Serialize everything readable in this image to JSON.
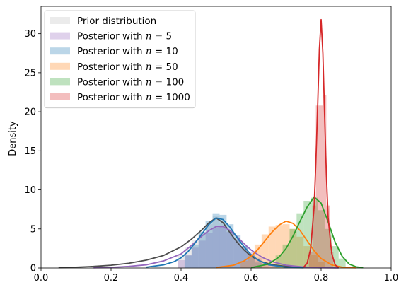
{
  "chart_data": {
    "type": "area",
    "title": "",
    "xlabel": "",
    "ylabel": "Density",
    "xlim": [
      0.0,
      1.0
    ],
    "ylim": [
      0,
      33.5
    ],
    "x_ticks": [
      "0.0",
      "0.2",
      "0.4",
      "0.6",
      "0.8",
      "1.0"
    ],
    "x_tick_values": [
      0.0,
      0.2,
      0.4,
      0.6,
      0.8,
      1.0
    ],
    "y_ticks": [
      "0",
      "5",
      "10",
      "15",
      "20",
      "25",
      "30"
    ],
    "y_tick_values": [
      0,
      5,
      10,
      15,
      20,
      25,
      30
    ],
    "grid": false,
    "legend_position": "top-left",
    "series": [
      {
        "legend_prefix": "Prior distribution",
        "legend_n": "",
        "color": "#bdbdbd",
        "line_color": "#4d4d4d",
        "hist_x": [
          0.4,
          0.42,
          0.44,
          0.46,
          0.48,
          0.5,
          0.52,
          0.54,
          0.56,
          0.58,
          0.6,
          0.62,
          0.64
        ],
        "hist_y": [
          1.6,
          2.6,
          3.6,
          4.6,
          5.6,
          6.6,
          5.8,
          4.8,
          3.6,
          2.6,
          1.6,
          0.9,
          0.4
        ],
        "curve_x": [
          0.05,
          0.1,
          0.15,
          0.2,
          0.25,
          0.3,
          0.35,
          0.4,
          0.43,
          0.46,
          0.48,
          0.5,
          0.52,
          0.54,
          0.56,
          0.58,
          0.6,
          0.63,
          0.66,
          0.7,
          0.75,
          0.8
        ],
        "curve_y": [
          0.05,
          0.1,
          0.2,
          0.35,
          0.6,
          1.0,
          1.6,
          2.7,
          3.7,
          4.9,
          5.8,
          6.4,
          5.8,
          4.5,
          3.3,
          2.3,
          1.5,
          0.8,
          0.4,
          0.2,
          0.08,
          0.03
        ]
      },
      {
        "legend_prefix": "Posterior with ",
        "legend_n": "5",
        "color": "#9467bd",
        "line_color": "#9467bd",
        "hist_x": [
          0.4,
          0.42,
          0.44,
          0.46,
          0.48,
          0.5,
          0.52,
          0.54,
          0.56,
          0.58,
          0.6,
          0.62,
          0.64,
          0.66
        ],
        "hist_y": [
          1.0,
          1.7,
          2.6,
          3.5,
          4.5,
          5.1,
          5.2,
          4.6,
          3.7,
          2.8,
          2.0,
          1.3,
          0.8,
          0.4
        ],
        "curve_x": [
          0.15,
          0.2,
          0.25,
          0.3,
          0.35,
          0.4,
          0.43,
          0.46,
          0.48,
          0.5,
          0.52,
          0.54,
          0.56,
          0.58,
          0.6,
          0.63,
          0.66,
          0.7,
          0.75,
          0.8,
          0.85
        ],
        "curve_y": [
          0.03,
          0.08,
          0.2,
          0.4,
          0.9,
          1.8,
          2.9,
          4.1,
          4.8,
          5.3,
          5.3,
          4.8,
          4.0,
          3.1,
          2.3,
          1.4,
          0.8,
          0.35,
          0.12,
          0.04,
          0.01
        ]
      },
      {
        "legend_prefix": "Posterior with ",
        "legend_n": "10",
        "color": "#1f77b4",
        "line_color": "#1f77b4",
        "hist_x": [
          0.42,
          0.44,
          0.46,
          0.48,
          0.5,
          0.52,
          0.54,
          0.56,
          0.58,
          0.6,
          0.62
        ],
        "hist_y": [
          1.6,
          3.0,
          4.6,
          6.0,
          7.0,
          6.8,
          5.6,
          4.2,
          2.8,
          1.6,
          0.7
        ],
        "curve_x": [
          0.3,
          0.35,
          0.38,
          0.4,
          0.42,
          0.44,
          0.46,
          0.48,
          0.5,
          0.52,
          0.54,
          0.56,
          0.58,
          0.6,
          0.62,
          0.65,
          0.7,
          0.75
        ],
        "curve_y": [
          0.1,
          0.4,
          0.8,
          1.3,
          2.1,
          3.2,
          4.4,
          5.6,
          6.4,
          6.2,
          5.2,
          3.9,
          2.7,
          1.7,
          1.0,
          0.4,
          0.1,
          0.02
        ]
      },
      {
        "legend_prefix": "Posterior with ",
        "legend_n": "50",
        "color": "#ff7f0e",
        "line_color": "#ff7f0e",
        "hist_x": [
          0.58,
          0.6,
          0.62,
          0.64,
          0.66,
          0.68,
          0.7,
          0.72,
          0.74,
          0.76,
          0.78,
          0.8
        ],
        "hist_y": [
          0.9,
          1.8,
          3.0,
          4.3,
          5.3,
          5.5,
          5.6,
          5.0,
          4.0,
          2.8,
          1.7,
          0.8
        ],
        "curve_x": [
          0.5,
          0.55,
          0.58,
          0.6,
          0.62,
          0.64,
          0.66,
          0.68,
          0.7,
          0.72,
          0.74,
          0.76,
          0.78,
          0.8,
          0.83,
          0.86,
          0.9
        ],
        "curve_y": [
          0.05,
          0.35,
          0.9,
          1.5,
          2.4,
          3.5,
          4.6,
          5.5,
          6.0,
          5.7,
          4.8,
          3.5,
          2.2,
          1.2,
          0.4,
          0.1,
          0.02
        ]
      },
      {
        "legend_prefix": "Posterior with ",
        "legend_n": "100",
        "color": "#2ca02c",
        "line_color": "#2ca02c",
        "hist_x": [
          0.68,
          0.7,
          0.72,
          0.74,
          0.76,
          0.78,
          0.8,
          0.82,
          0.84,
          0.86
        ],
        "hist_y": [
          1.6,
          3.0,
          5.0,
          7.0,
          8.6,
          9.0,
          7.4,
          5.0,
          2.8,
          1.2
        ],
        "curve_x": [
          0.6,
          0.65,
          0.68,
          0.7,
          0.72,
          0.74,
          0.76,
          0.78,
          0.8,
          0.82,
          0.84,
          0.86,
          0.88,
          0.9,
          0.92
        ],
        "curve_y": [
          0.05,
          0.5,
          1.4,
          2.5,
          4.1,
          6.0,
          7.8,
          9.1,
          8.3,
          5.9,
          3.3,
          1.5,
          0.5,
          0.15,
          0.03
        ]
      },
      {
        "legend_prefix": "Posterior with ",
        "legend_n": "1000",
        "color": "#d62728",
        "line_color": "#d62728",
        "hist_x": [
          0.77,
          0.78,
          0.79,
          0.8,
          0.81,
          0.82,
          0.83
        ],
        "hist_y": [
          2.0,
          8.0,
          20.8,
          20.8,
          22.1,
          8.0,
          2.0
        ],
        "curve_x": [
          0.75,
          0.76,
          0.77,
          0.78,
          0.785,
          0.79,
          0.795,
          0.8,
          0.805,
          0.81,
          0.815,
          0.82,
          0.83,
          0.84,
          0.85
        ],
        "curve_y": [
          0.1,
          0.6,
          2.4,
          7.8,
          13.5,
          20.5,
          28.0,
          31.8,
          27.5,
          19.5,
          12.0,
          6.5,
          1.9,
          0.4,
          0.05
        ]
      }
    ]
  }
}
